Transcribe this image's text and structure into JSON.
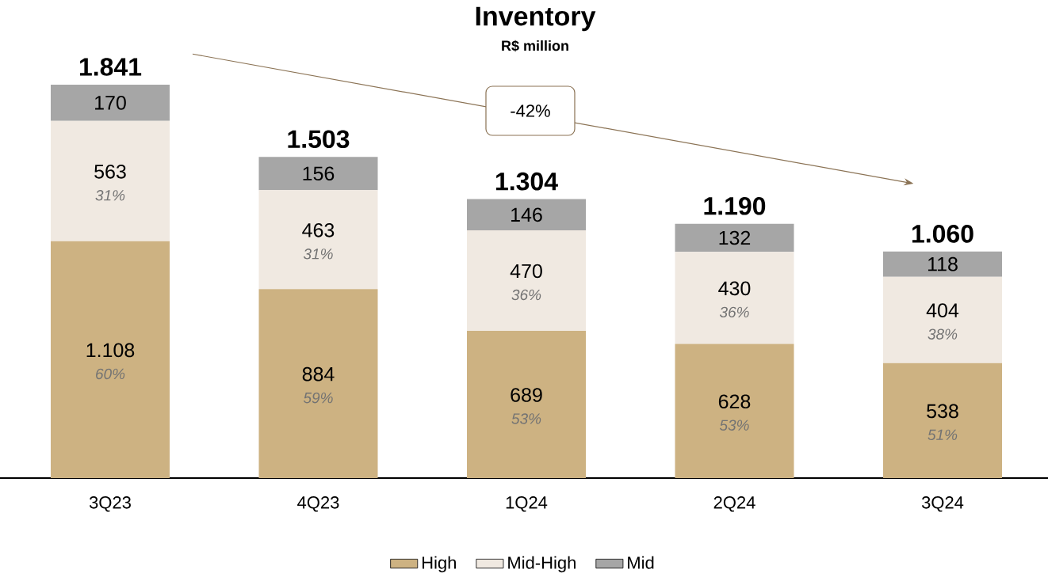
{
  "chart_data": {
    "type": "bar",
    "title": "Inventory",
    "subtitle": "R$ million",
    "stacked": true,
    "legend": "bottom",
    "categories": [
      "3Q23",
      "4Q23",
      "1Q24",
      "2Q24",
      "3Q24"
    ],
    "series": [
      {
        "name": "High",
        "color": "#cdb282",
        "values": [
          1108,
          884,
          689,
          628,
          538
        ],
        "value_labels": [
          "1.108",
          "884",
          "689",
          "628",
          "538"
        ]
      },
      {
        "name": "Mid-High",
        "color": "#f0e9e1",
        "values": [
          563,
          463,
          470,
          430,
          404
        ],
        "value_labels": [
          "563",
          "463",
          "470",
          "430",
          "404"
        ]
      },
      {
        "name": "Mid",
        "color": "#a6a6a6",
        "values": [
          170,
          156,
          146,
          132,
          118
        ],
        "value_labels": [
          "170",
          "156",
          "146",
          "132",
          "118"
        ]
      }
    ],
    "totals": [
      "1.841",
      "1.503",
      "1.304",
      "1.190",
      "1.060"
    ],
    "annotations": [
      "-42%",
      "60%",
      "59%",
      "53%",
      "53%",
      "51%",
      "31%",
      "31%",
      "36%",
      "36%",
      "38%"
    ]
  }
}
